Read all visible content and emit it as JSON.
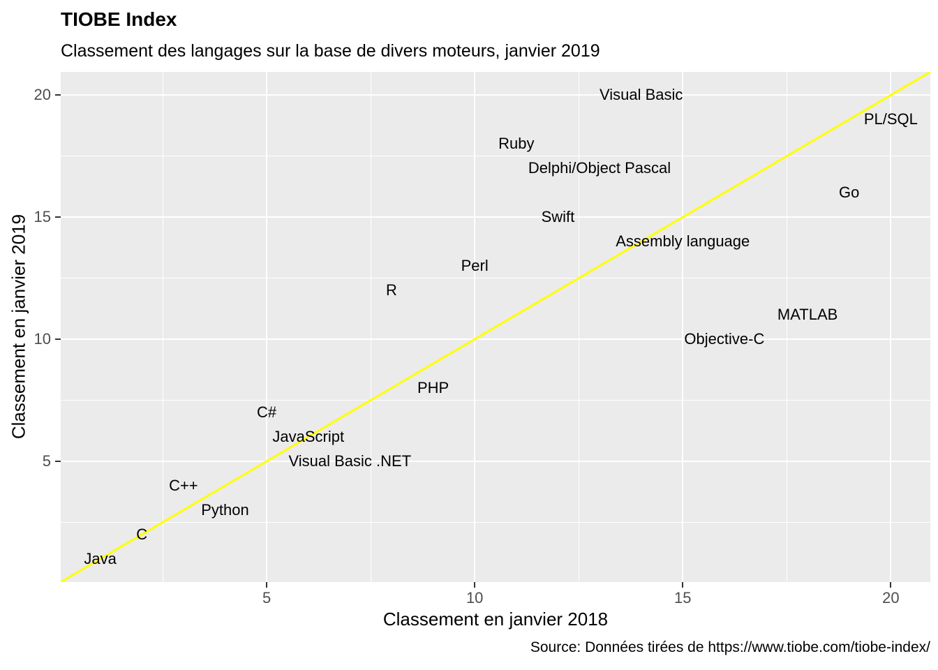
{
  "title": "TIOBE Index",
  "subtitle": "Classement des langages sur la base de divers moteurs, janvier 2019",
  "caption": "Source: Données tirées de https://www.tiobe.com/tiobe-index/",
  "colors": {
    "panel_background": "#EBEBEB",
    "gridline": "#FFFFFF",
    "tick_mark": "#333333",
    "tick_label": "#4D4D4D",
    "label_text": "#000000",
    "identity_line": "#FFFF00",
    "page_background": "#FFFFFF"
  },
  "chart_data": {
    "type": "scatter",
    "mark": "text-label",
    "title": "TIOBE Index",
    "subtitle": "Classement des langages sur la base de divers moteurs, janvier 2019",
    "xlabel": "Classement en janvier 2018",
    "ylabel": "Classement en janvier 2019",
    "xlim": [
      0.05,
      20.95
    ],
    "ylim": [
      0.05,
      20.95
    ],
    "x_ticks": [
      5,
      10,
      15,
      20
    ],
    "y_ticks": [
      5,
      10,
      15,
      20
    ],
    "minor_gridlines": [
      2.5,
      7.5,
      12.5,
      17.5
    ],
    "grid": true,
    "legend": "none",
    "reference_line": {
      "type": "identity",
      "slope": 1,
      "intercept": 0,
      "color": "#FFFF00",
      "width": 3
    },
    "points": [
      {
        "label": "Java",
        "x": 1,
        "y": 1
      },
      {
        "label": "C",
        "x": 2,
        "y": 2
      },
      {
        "label": "Python",
        "x": 4,
        "y": 3
      },
      {
        "label": "C++",
        "x": 3,
        "y": 4
      },
      {
        "label": "Visual Basic .NET",
        "x": 7,
        "y": 5
      },
      {
        "label": "JavaScript",
        "x": 6,
        "y": 6
      },
      {
        "label": "C#",
        "x": 5,
        "y": 7
      },
      {
        "label": "PHP",
        "x": 9,
        "y": 8
      },
      {
        "label": "Objective-C",
        "x": 16,
        "y": 10
      },
      {
        "label": "MATLAB",
        "x": 18,
        "y": 11
      },
      {
        "label": "R",
        "x": 8,
        "y": 12
      },
      {
        "label": "Perl",
        "x": 10,
        "y": 13
      },
      {
        "label": "Assembly language",
        "x": 15,
        "y": 14
      },
      {
        "label": "Swift",
        "x": 12,
        "y": 15
      },
      {
        "label": "Go",
        "x": 19,
        "y": 16
      },
      {
        "label": "Delphi/Object Pascal",
        "x": 13,
        "y": 17
      },
      {
        "label": "Ruby",
        "x": 11,
        "y": 18
      },
      {
        "label": "PL/SQL",
        "x": 20,
        "y": 19
      },
      {
        "label": "Visual Basic",
        "x": 14,
        "y": 20
      }
    ]
  }
}
